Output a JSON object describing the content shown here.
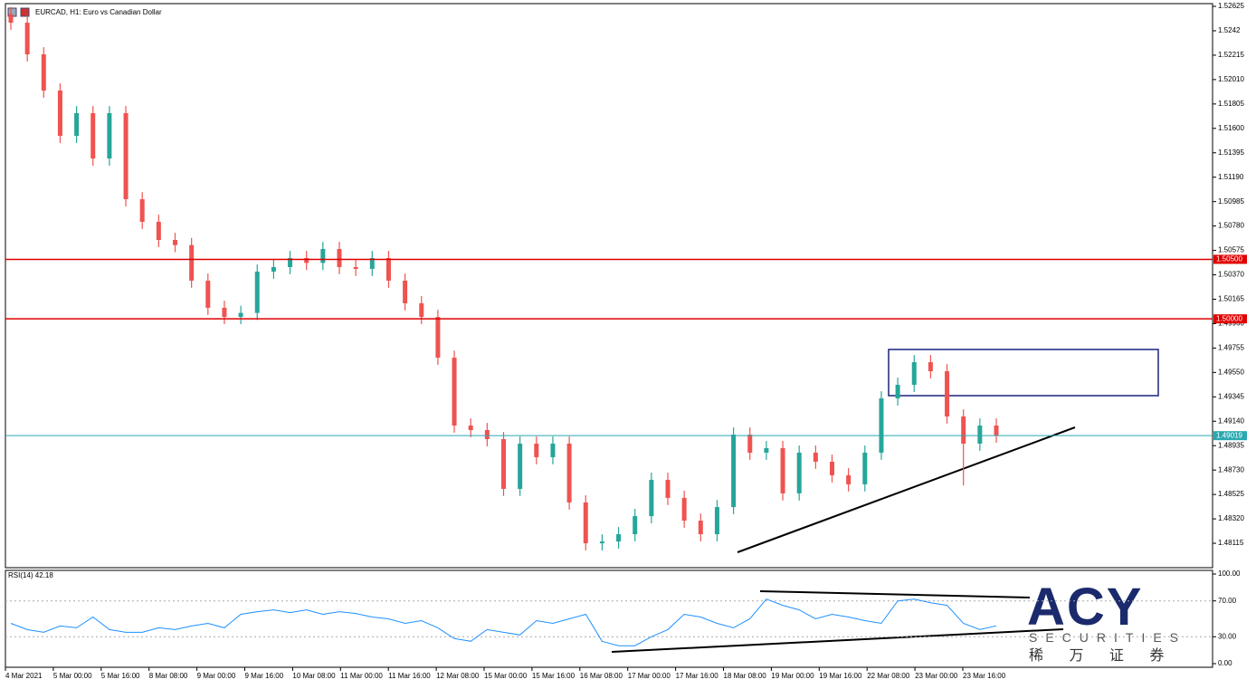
{
  "chart_data": [
    {
      "type": "candlestick",
      "title": "EURCAD, H1:  Euro vs Canadian Dollar",
      "up_color": "#26a69a",
      "down_color": "#ef5350",
      "open": [
        1.5256,
        1.52488,
        1.52222,
        1.51918,
        1.51537,
        1.51728,
        1.51347,
        1.51728,
        1.51005,
        1.50815,
        1.50663,
        1.5062,
        1.50321,
        1.50093,
        1.50016,
        1.5005,
        1.50397,
        1.50435,
        1.50511,
        1.5047,
        1.50587,
        1.50435,
        1.5042,
        1.50511,
        1.50321,
        1.50131,
        1.50016,
        1.49674,
        1.49104,
        1.49066,
        1.4899,
        1.48572,
        1.48952,
        1.48838,
        1.48952,
        1.48458,
        1.48115,
        1.4813,
        1.48191,
        1.48343,
        1.48648,
        1.48496,
        1.48305,
        1.48191,
        1.48419,
        1.49028,
        1.48876,
        1.48914,
        1.48534,
        1.48876,
        1.488,
        1.48686,
        1.4861,
        1.48876,
        1.49332,
        1.49446,
        1.49636,
        1.4956,
        1.4918,
        1.48952,
        1.49104
      ],
      "high": [
        1.5262,
        1.52548,
        1.52282,
        1.51978,
        1.51788,
        1.51788,
        1.51788,
        1.51788,
        1.51065,
        1.50875,
        1.50723,
        1.5068,
        1.50381,
        1.50153,
        1.5011,
        1.50457,
        1.50495,
        1.50571,
        1.50571,
        1.50647,
        1.50647,
        1.50495,
        1.50571,
        1.50571,
        1.50381,
        1.50191,
        1.50076,
        1.49734,
        1.49164,
        1.49126,
        1.4905,
        1.49012,
        1.49012,
        1.49012,
        1.49012,
        1.48518,
        1.4819,
        1.48251,
        1.48403,
        1.48708,
        1.48708,
        1.48556,
        1.48365,
        1.48479,
        1.49088,
        1.49088,
        1.48974,
        1.48974,
        1.48936,
        1.48936,
        1.4886,
        1.48746,
        1.48936,
        1.49392,
        1.49506,
        1.49696,
        1.49696,
        1.4962,
        1.4924,
        1.49164,
        1.49164
      ],
      "low": [
        1.52428,
        1.52162,
        1.51858,
        1.51477,
        1.51477,
        1.51287,
        1.51287,
        1.50945,
        1.50755,
        1.50603,
        1.5056,
        1.50261,
        1.50033,
        1.49956,
        1.49956,
        1.4999,
        1.50337,
        1.50375,
        1.5041,
        1.5041,
        1.50375,
        1.5036,
        1.5036,
        1.50261,
        1.50071,
        1.49956,
        1.49614,
        1.49044,
        1.49006,
        1.4893,
        1.48512,
        1.48512,
        1.48778,
        1.48778,
        1.48398,
        1.48055,
        1.48055,
        1.4807,
        1.48131,
        1.48283,
        1.48436,
        1.48245,
        1.48131,
        1.48131,
        1.48359,
        1.48816,
        1.48816,
        1.48474,
        1.48474,
        1.4874,
        1.48626,
        1.4855,
        1.4855,
        1.48816,
        1.49272,
        1.49386,
        1.495,
        1.4912,
        1.486,
        1.48892,
        1.48959
      ],
      "close": [
        1.52488,
        1.52222,
        1.51918,
        1.51537,
        1.51728,
        1.51347,
        1.51728,
        1.51005,
        1.50815,
        1.50663,
        1.5062,
        1.50321,
        1.50093,
        1.50016,
        1.5005,
        1.50397,
        1.50435,
        1.50511,
        1.5047,
        1.50587,
        1.50435,
        1.5042,
        1.50511,
        1.50321,
        1.50131,
        1.50016,
        1.49674,
        1.49104,
        1.49066,
        1.4899,
        1.48572,
        1.48952,
        1.48838,
        1.48952,
        1.48458,
        1.48115,
        1.4813,
        1.48191,
        1.48343,
        1.48648,
        1.48496,
        1.48305,
        1.48191,
        1.48419,
        1.49028,
        1.48876,
        1.48914,
        1.48534,
        1.48876,
        1.488,
        1.48686,
        1.4861,
        1.48876,
        1.49332,
        1.49446,
        1.49636,
        1.4956,
        1.4918,
        1.48952,
        1.49104,
        1.49019
      ],
      "ylim": [
        1.4791,
        1.52648
      ],
      "yticks": [
        1.52625,
        1.5242,
        1.52215,
        {
          "value": 1.5201,
          "label": "1.52010"
        },
        1.51805,
        {
          "value": 1.516,
          "label": "1.51600"
        },
        1.51395,
        {
          "value": 1.5119,
          "label": "1.51190"
        },
        1.50985,
        {
          "value": 1.5078,
          "label": "1.50780"
        },
        1.50575,
        {
          "value": 1.5037,
          "label": "1.50370"
        },
        1.50165,
        {
          "value": 1.4996,
          "label": "1.49960"
        },
        1.49755,
        {
          "value": 1.4955,
          "label": "1.49550"
        },
        1.49345,
        {
          "value": 1.4914,
          "label": "1.49140"
        },
        1.48935,
        {
          "value": 1.4873,
          "label": "1.48730"
        },
        1.48525,
        {
          "value": 1.4832,
          "label": "1.48320"
        },
        1.48115
      ],
      "levels": [
        {
          "value": 1.505,
          "label": "1.50500",
          "color": "#e00000"
        },
        {
          "value": 1.5,
          "label": "1.50000",
          "color": "#e00000"
        },
        {
          "value": 1.49019,
          "label": "1.49019",
          "color": "#2aa8b0"
        }
      ],
      "xtick_labels": [
        "4 Mar 2021",
        "5 Mar 00:00",
        "5 Mar 16:00",
        "8 Mar 08:00",
        "9 Mar 00:00",
        "9 Mar 16:00",
        "10 Mar 08:00",
        "11 Mar 00:00",
        "11 Mar 16:00",
        "12 Mar 08:00",
        "15 Mar 00:00",
        "15 Mar 16:00",
        "16 Mar 08:00",
        "17 Mar 00:00",
        "17 Mar 16:00",
        "18 Mar 08:00",
        "19 Mar 00:00",
        "19 Mar 16:00",
        "22 Mar 08:00",
        "23 Mar 00:00",
        "23 Mar 16:00"
      ]
    },
    {
      "type": "line",
      "title": "RSI(14) 42.18",
      "color": "#1e90ff",
      "values": [
        45,
        38,
        35,
        42,
        40,
        52,
        38,
        35,
        35,
        40,
        38,
        42,
        45,
        40,
        55,
        58,
        60,
        57,
        60,
        55,
        58,
        56,
        52,
        50,
        45,
        48,
        40,
        28,
        25,
        38,
        35,
        32,
        48,
        45,
        50,
        55,
        25,
        20,
        20,
        30,
        38,
        55,
        52,
        45,
        40,
        50,
        72,
        65,
        60,
        50,
        55,
        52,
        48,
        45,
        70,
        72,
        68,
        65,
        45,
        38,
        42.18
      ],
      "ylim": [
        0,
        100
      ],
      "yticks": [
        {
          "value": 100,
          "label": "100.00"
        },
        {
          "value": 70,
          "label": "70.00"
        },
        {
          "value": 30,
          "label": "30.00"
        },
        {
          "value": 0,
          "label": "0.00"
        }
      ]
    }
  ],
  "logo": {
    "name": "ACY",
    "tagline": "SECURITIES",
    "chinese": "稀 万 证 券"
  }
}
